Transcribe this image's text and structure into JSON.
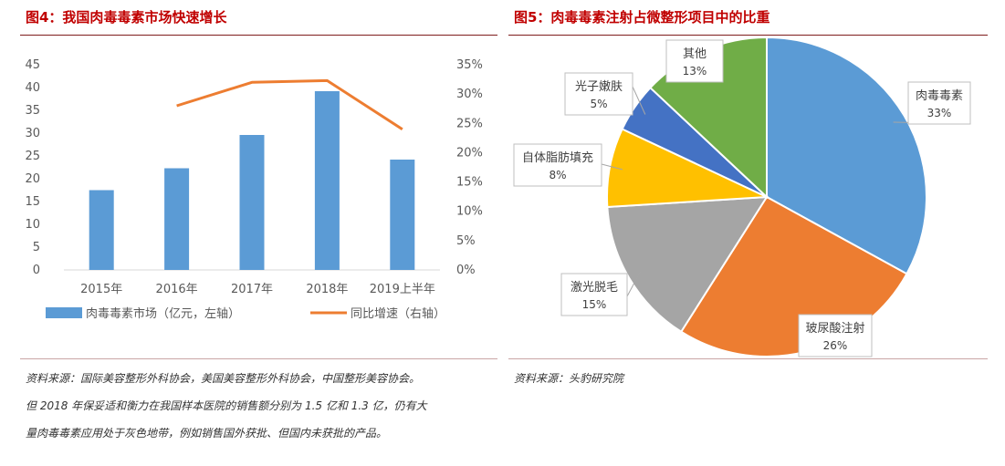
{
  "left": {
    "title": "图4：我国肉毒毒素市场快速增长",
    "source": [
      "资料来源：国际美容整形外科协会，美国美容整形外科协会，中国整形美容协会。",
      "但 2018 年保妥适和衡力在我国样本医院的销售额分别为 1.5 亿和 1.3 亿，仍有大",
      "量肉毒毒素应用处于灰色地带，例如销售国外获批、但国内未获批的产品。"
    ]
  },
  "right": {
    "title": "图5：肉毒毒素注射占微整形项目中的比重",
    "source": "资料来源：头豹研究院"
  },
  "colors": {
    "bar": "#5b9bd5",
    "line": "#ed7d31",
    "accent": "#c00000"
  },
  "chart_data": [
    {
      "type": "bar",
      "title": "图4：我国肉毒毒素市场快速增长",
      "categories": [
        "2015年",
        "2016年",
        "2017年",
        "2018年",
        "2019上半年"
      ],
      "series": [
        {
          "name": "肉毒毒素市场（亿元，左轴）",
          "type": "bar",
          "axis": "left",
          "values": [
            17.5,
            22.3,
            29.6,
            39.2,
            24.2
          ]
        },
        {
          "name": "同比增速（右轴）",
          "type": "line",
          "axis": "right",
          "values": [
            null,
            28.0,
            32.0,
            32.3,
            24.0
          ]
        }
      ],
      "y_left": {
        "lim": [
          0,
          45
        ],
        "ticks": [
          "0",
          "5",
          "10",
          "15",
          "20",
          "25",
          "30",
          "35",
          "40",
          "45"
        ]
      },
      "y_right": {
        "lim": [
          0,
          35
        ],
        "ticks": [
          "0%",
          "5%",
          "10%",
          "15%",
          "20%",
          "25%",
          "30%",
          "35%"
        ]
      },
      "grid": false,
      "legend": "bottom"
    },
    {
      "type": "pie",
      "title": "图5：肉毒毒素注射占微整形项目中的比重",
      "slices": [
        {
          "label": "肉毒毒素",
          "value": 33,
          "display": "33%",
          "color": "#5b9bd5"
        },
        {
          "label": "玻尿酸注射",
          "value": 26,
          "display": "26%",
          "color": "#ed7d31"
        },
        {
          "label": "激光脱毛",
          "value": 15,
          "display": "15%",
          "color": "#a5a5a5"
        },
        {
          "label": "自体脂肪填充",
          "value": 8,
          "display": "8%",
          "color": "#ffc000"
        },
        {
          "label": "光子嫩肤",
          "value": 5,
          "display": "5%",
          "color": "#4472c4"
        },
        {
          "label": "其他",
          "value": 13,
          "display": "13%",
          "color": "#70ad47"
        }
      ]
    }
  ]
}
